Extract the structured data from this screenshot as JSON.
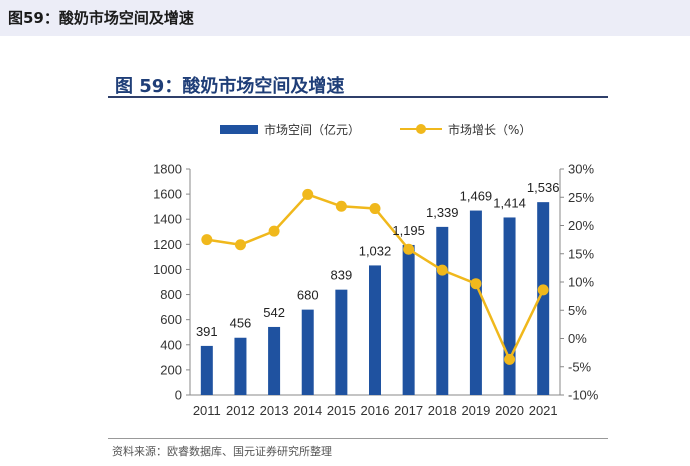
{
  "header": {
    "title": "图59：酸奶市场空间及增速"
  },
  "chart_title": "图 59：酸奶市场空间及增速",
  "source_note": "资料来源：欧睿数据库、国元证券研究所整理",
  "colors": {
    "bar": "#1f52a0",
    "line": "#f0b81c"
  },
  "chart_data": {
    "type": "bar",
    "title": "图 59：酸奶市场空间及增速",
    "categories": [
      "2011",
      "2012",
      "2013",
      "2014",
      "2015",
      "2016",
      "2017",
      "2018",
      "2019",
      "2020",
      "2021"
    ],
    "series": [
      {
        "name": "市场空间（亿元）",
        "type": "bar",
        "axis": "left",
        "values": [
          391,
          456,
          542,
          680,
          839,
          1032,
          1195,
          1339,
          1469,
          1414,
          1536
        ],
        "labels": [
          "391",
          "456",
          "542",
          "680",
          "839",
          "1,032",
          "1,195",
          "1,339",
          "1,469",
          "1,414",
          "1,536"
        ]
      },
      {
        "name": "市场增长（%）",
        "type": "line",
        "axis": "right",
        "values": [
          17.5,
          16.6,
          19.0,
          25.5,
          23.4,
          23.0,
          15.8,
          12.1,
          9.7,
          -3.7,
          8.6
        ]
      }
    ],
    "left_axis": {
      "ylim": [
        0,
        1800
      ],
      "ticks": [
        "0",
        "200",
        "400",
        "600",
        "800",
        "1000",
        "1200",
        "1400",
        "1600",
        "1800"
      ]
    },
    "right_axis": {
      "ylim": [
        -10,
        30
      ],
      "ticks": [
        "-10%",
        "-5%",
        "0%",
        "5%",
        "10%",
        "15%",
        "20%",
        "25%",
        "30%"
      ]
    },
    "legend_position": "top",
    "grid": false
  }
}
